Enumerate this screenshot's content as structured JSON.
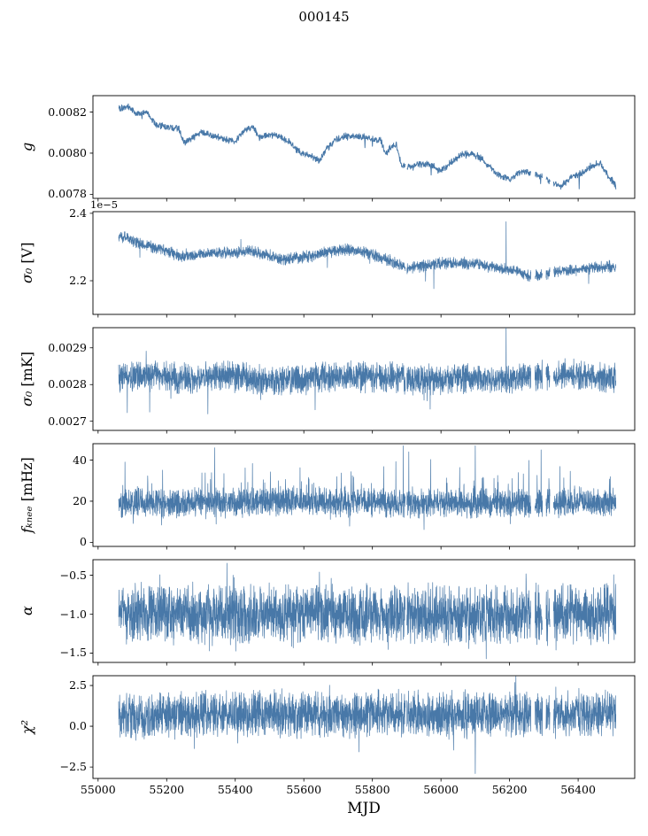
{
  "title": "000145",
  "chart_data": {
    "type": "line",
    "title": "000145",
    "xlabel": "MJD",
    "xlim": [
      54985,
      56565
    ],
    "xdata_range": [
      55060,
      56510
    ],
    "line_color": "#4878a8",
    "gaps": [
      [
        55896,
        55900
      ],
      [
        56262,
        56274
      ],
      [
        56296,
        56306
      ],
      [
        56318,
        56328
      ]
    ],
    "xticks": {
      "values": [
        55000,
        55200,
        55400,
        55600,
        55800,
        56000,
        56200,
        56400
      ],
      "labels": [
        "55000",
        "55200",
        "55400",
        "55600",
        "55800",
        "56000",
        "56200",
        "56400"
      ]
    },
    "panels": [
      {
        "name": "g",
        "ylabel_symbol": "g",
        "ylabel_unit": "",
        "offset_text": "",
        "ylim": [
          0.00778,
          0.00828
        ],
        "yticks": {
          "values": [
            0.0078,
            0.008,
            0.0082
          ],
          "labels": [
            "0.0078",
            "0.0080",
            "0.0082"
          ]
        },
        "trend": {
          "x": [
            55060,
            55090,
            55110,
            55140,
            55170,
            55200,
            55235,
            55250,
            55270,
            55300,
            55330,
            55360,
            55400,
            55430,
            55450,
            55470,
            55500,
            55530,
            55560,
            55590,
            55620,
            55645,
            55665,
            55690,
            55720,
            55760,
            55800,
            55825,
            55840,
            55855,
            55870,
            55885,
            55910,
            55940,
            55970,
            56000,
            56030,
            56060,
            56090,
            56120,
            56150,
            56175,
            56200,
            56230,
            56260,
            56290,
            56320,
            56350,
            56380,
            56410,
            56440,
            56465,
            56485,
            56510
          ],
          "y": [
            0.00822,
            0.008225,
            0.00819,
            0.0082,
            0.00814,
            0.00813,
            0.00812,
            0.00805,
            0.00807,
            0.0081,
            0.00809,
            0.00807,
            0.00806,
            0.00811,
            0.00813,
            0.00808,
            0.00809,
            0.00808,
            0.00805,
            0.008,
            0.00799,
            0.00796,
            0.00802,
            0.00806,
            0.00808,
            0.00808,
            0.00807,
            0.00806,
            0.008,
            0.00803,
            0.00804,
            0.00794,
            0.00793,
            0.00795,
            0.00794,
            0.00791,
            0.00796,
            0.00799,
            0.008,
            0.00797,
            0.00792,
            0.00789,
            0.00787,
            0.00791,
            0.00791,
            0.00789,
            0.00786,
            0.00784,
            0.00788,
            0.0079,
            0.00794,
            0.00795,
            0.0079,
            0.00784
          ]
        },
        "n": 1600,
        "noise": 2e-05,
        "seed": 101,
        "line_width": 1.0,
        "tails": [
          {
            "p": 0.004,
            "mag": -5e-05
          }
        ],
        "spikes": []
      },
      {
        "name": "sigma0_V",
        "ylabel_symbol": "σ₀",
        "ylabel_unit": " [V]",
        "offset_text": "1e−5",
        "ylim": [
          2.1,
          2.405
        ],
        "yticks": {
          "values": [
            2.2,
            2.4
          ],
          "labels": [
            "2.2",
            "2.4"
          ]
        },
        "trend": {
          "x": [
            55060,
            55090,
            55120,
            55160,
            55200,
            55240,
            55280,
            55320,
            55360,
            55400,
            55440,
            55470,
            55500,
            55540,
            55580,
            55620,
            55660,
            55700,
            55740,
            55780,
            55820,
            55860,
            55900,
            55940,
            55980,
            56020,
            56060,
            56100,
            56140,
            56180,
            56220,
            56260,
            56300,
            56340,
            56380,
            56420,
            56460,
            56510
          ],
          "y": [
            2.33,
            2.325,
            2.31,
            2.3,
            2.29,
            2.272,
            2.278,
            2.282,
            2.283,
            2.284,
            2.29,
            2.282,
            2.272,
            2.262,
            2.268,
            2.272,
            2.284,
            2.29,
            2.292,
            2.285,
            2.27,
            2.256,
            2.238,
            2.242,
            2.25,
            2.252,
            2.252,
            2.25,
            2.242,
            2.235,
            2.228,
            2.212,
            2.22,
            2.228,
            2.232,
            2.236,
            2.24,
            2.242
          ]
        },
        "n": 3000,
        "noise": 0.02,
        "seed": 202,
        "line_width": 0.7,
        "tails": [
          {
            "p": 0.003,
            "mag": -0.045
          },
          {
            "p": 0.002,
            "mag": 0.03
          }
        ],
        "spikes": [
          {
            "x": 56190,
            "y": 2.375
          }
        ]
      },
      {
        "name": "sigma0_mK",
        "ylabel_symbol": "σ₀",
        "ylabel_unit": " [mK]",
        "offset_text": "",
        "ylim": [
          0.002675,
          0.002955
        ],
        "yticks": {
          "values": [
            0.0027,
            0.0028,
            0.0029
          ],
          "labels": [
            "0.0027",
            "0.0028",
            "0.0029"
          ]
        },
        "trend": {
          "x": [
            55060,
            55160,
            55260,
            55360,
            55460,
            55560,
            55660,
            55760,
            55860,
            55960,
            56060,
            56160,
            56260,
            56360,
            56460,
            56510
          ],
          "y": [
            0.00282,
            0.002825,
            0.002815,
            0.002825,
            0.002815,
            0.00281,
            0.00282,
            0.002822,
            0.00282,
            0.002812,
            0.002818,
            0.002812,
            0.00282,
            0.002828,
            0.002822,
            0.00282
          ]
        },
        "n": 3000,
        "noise": 4.6e-05,
        "seed": 303,
        "line_width": 0.7,
        "tails": [
          {
            "p": 0.004,
            "mag": -8e-05
          },
          {
            "p": 0.002,
            "mag": 6e-05
          }
        ],
        "spikes": [
          {
            "x": 56190,
            "y": 0.00296
          },
          {
            "x": 55320,
            "y": 0.00272
          }
        ]
      },
      {
        "name": "f_knee",
        "ylabel_symbol": "fₖₙₑₑ",
        "ylabel_unit": " [mHz]",
        "offset_text": "",
        "ylim": [
          -2,
          48
        ],
        "yticks": {
          "values": [
            0,
            20,
            40
          ],
          "labels": [
            "0",
            "20",
            "40"
          ]
        },
        "trend": {
          "x": [
            55060,
            55300,
            55600,
            55900,
            56200,
            56510
          ],
          "y": [
            19,
            19,
            20,
            19,
            19,
            20
          ]
        },
        "n": 3000,
        "noise": 8,
        "seed": 404,
        "line_width": 0.7,
        "tails": [
          {
            "p": 0.04,
            "mag": 11
          },
          {
            "p": 0.01,
            "mag": -7
          }
        ],
        "spikes": [
          {
            "x": 55340,
            "y": 46
          },
          {
            "x": 55890,
            "y": 47
          },
          {
            "x": 55906,
            "y": 44
          },
          {
            "x": 56100,
            "y": 47
          },
          {
            "x": 56292,
            "y": 45
          }
        ]
      },
      {
        "name": "alpha",
        "ylabel_symbol": "α",
        "ylabel_unit": "",
        "offset_text": "",
        "ylim": [
          -1.62,
          -0.3
        ],
        "yticks": {
          "values": [
            -0.5,
            -1.0,
            -1.5
          ],
          "labels": [
            "−0.5",
            "−1.0",
            "−1.5"
          ]
        },
        "trend": {
          "x": [
            55060,
            56510
          ],
          "y": [
            -1.0,
            -1.0
          ]
        },
        "n": 3000,
        "noise": 0.42,
        "seed": 505,
        "line_width": 0.7,
        "tails": [
          {
            "p": 0.02,
            "mag": 0.28
          },
          {
            "p": 0.02,
            "mag": -0.18
          }
        ],
        "spikes": []
      },
      {
        "name": "chi2",
        "ylabel_symbol": "χ²",
        "ylabel_unit": "",
        "offset_text": "",
        "ylim": [
          -3.2,
          3.1
        ],
        "yticks": {
          "values": [
            -2.5,
            0.0,
            2.5
          ],
          "labels": [
            "−2.5",
            "0.0",
            "2.5"
          ]
        },
        "trend": {
          "x": [
            55060,
            55200,
            55800,
            56100,
            56510
          ],
          "y": [
            0.6,
            0.75,
            0.75,
            0.7,
            0.8
          ]
        },
        "n": 3000,
        "noise": 1.6,
        "seed": 606,
        "line_width": 0.7,
        "tails": [
          {
            "p": 0.015,
            "mag": 0.7
          },
          {
            "p": 0.01,
            "mag": -0.9
          }
        ],
        "spikes": [
          {
            "x": 56100,
            "y": -2.9
          }
        ]
      }
    ]
  }
}
